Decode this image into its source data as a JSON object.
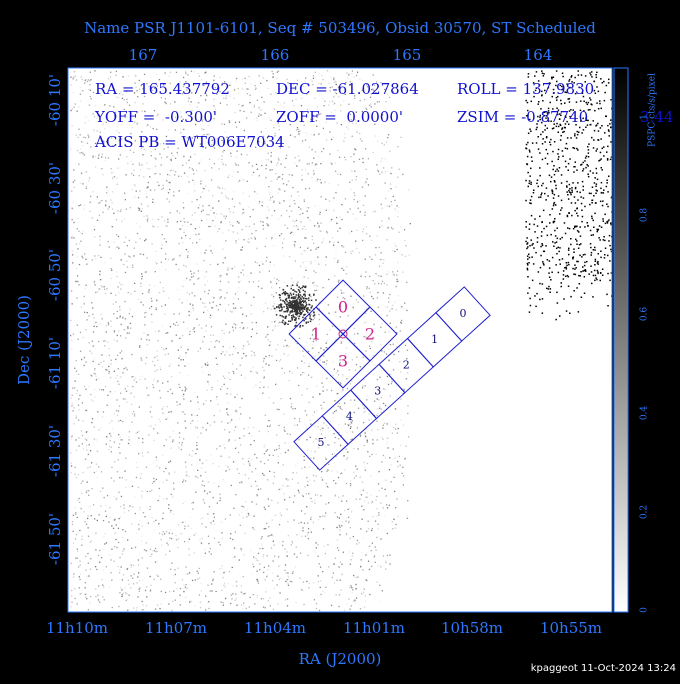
{
  "header": {
    "title": "Name PSR J1101-6101, Seq # 503496, Obsid 30570, ST Scheduled"
  },
  "info": {
    "ra": "RA = 165.437792",
    "dec": "DEC = -61.027864",
    "roll": "ROLL = 137.9830",
    "yoff": "YOFF =  -0.300'",
    "zoff": "ZOFF =  0.0000'",
    "zsim": "ZSIM = -0.87740",
    "zsim_extra": "3.44",
    "acis": "ACIS PB = WT006E7034"
  },
  "top_axis": {
    "ticks": [
      "167",
      "166",
      "165",
      "164"
    ]
  },
  "bottom_axis": {
    "ticks": [
      "11h10m",
      "11h07m",
      "11h04m",
      "11h01m",
      "10h58m",
      "10h55m"
    ],
    "label": "RA (J2000)"
  },
  "left_axis": {
    "ticks": [
      "-60 10'",
      "-60 30'",
      "-60 50'",
      "-61 10'",
      "-61 30'",
      "-61 50'"
    ],
    "label": "Dec (J2000)"
  },
  "colorbar": {
    "label": "PSPC cts/s/pixel",
    "ticks": [
      "0",
      "0.2",
      "0.4",
      "0.6",
      "0.8",
      "1"
    ]
  },
  "acis_i": {
    "chips": [
      "0",
      "1",
      "2",
      "3"
    ]
  },
  "acis_s": {
    "chips": [
      "0",
      "1",
      "2",
      "3",
      "4",
      "5"
    ]
  },
  "footer": {
    "text": "kpaggeot 11-Oct-2024 13:24"
  }
}
